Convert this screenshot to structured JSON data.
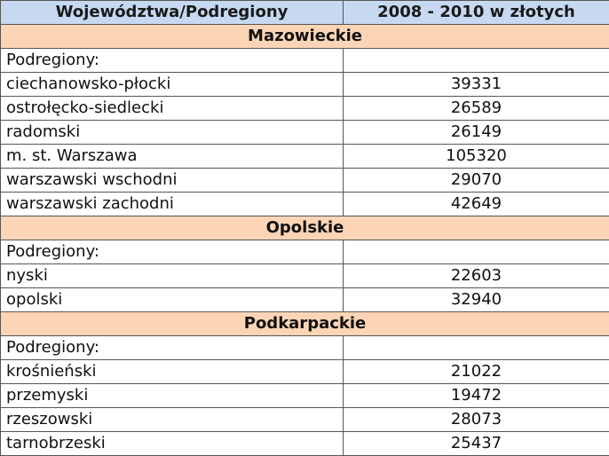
{
  "table": {
    "headers": [
      "Województwa/Podregiony",
      "2008 - 2010  w złotych"
    ],
    "sections": [
      {
        "name": "Mazowieckie",
        "rows": [
          {
            "label": "Podregiony:",
            "value": ""
          },
          {
            "label": "ciechanowsko-płocki",
            "value": "39331"
          },
          {
            "label": "ostrołęcko-siedlecki",
            "value": "26589"
          },
          {
            "label": "radomski",
            "value": "26149"
          },
          {
            "label": "m. st. Warszawa",
            "value": "105320"
          },
          {
            "label": "warszawski wschodni",
            "value": "29070"
          },
          {
            "label": "warszawski zachodni",
            "value": "42649"
          }
        ]
      },
      {
        "name": "Opolskie",
        "rows": [
          {
            "label": "Podregiony:",
            "value": ""
          },
          {
            "label": "nyski",
            "value": "22603"
          },
          {
            "label": "opolski",
            "value": "32940"
          }
        ]
      },
      {
        "name": "Podkarpackie",
        "rows": [
          {
            "label": "Podregiony:",
            "value": ""
          },
          {
            "label": "krośnieński",
            "value": "21022"
          },
          {
            "label": "przemyski",
            "value": "19472"
          },
          {
            "label": "rzeszowski",
            "value": "28073"
          },
          {
            "label": "tarnobrzeski",
            "value": "25437"
          }
        ]
      }
    ]
  },
  "colors": {
    "header_bg": "#c6d9f1",
    "region_bg": "#fbd5b5"
  }
}
